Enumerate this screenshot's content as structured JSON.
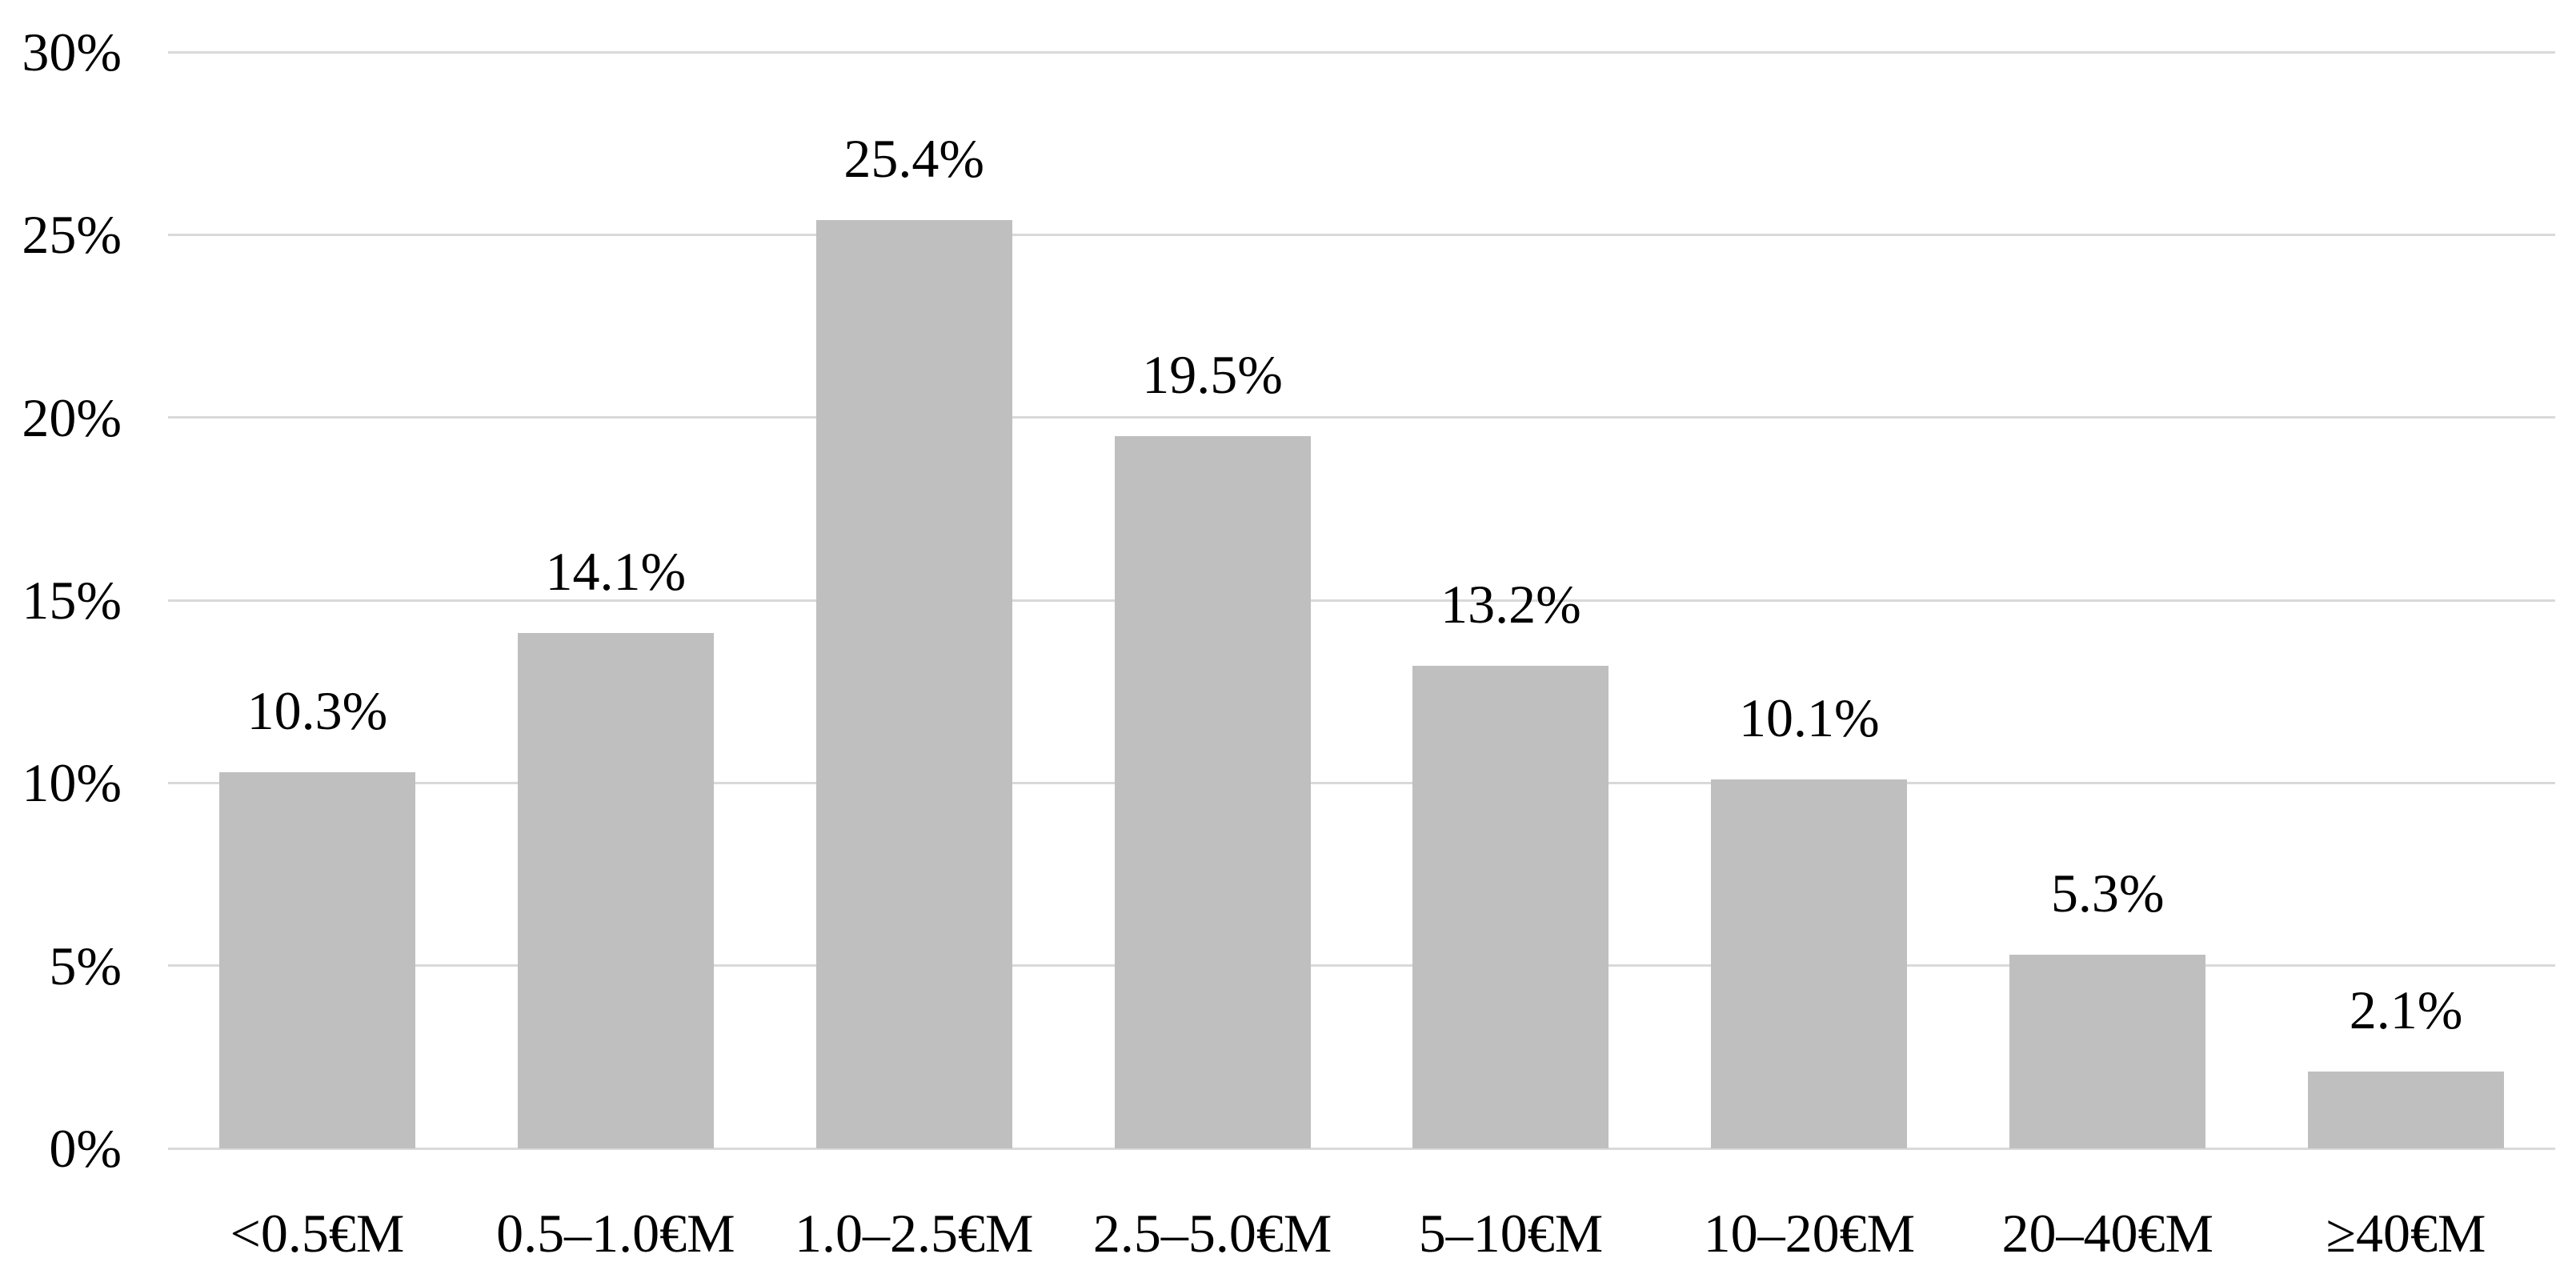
{
  "chart_data": {
    "type": "bar",
    "title": "",
    "xlabel": "",
    "ylabel": "",
    "categories": [
      "<0.5€M",
      "0.5–1.0€M",
      "1.0–2.5€M",
      "2.5–5.0€M",
      "5–10€M",
      "10–20€M",
      "20–40€M",
      "≥40€M"
    ],
    "values": [
      10.3,
      14.1,
      25.4,
      19.5,
      13.2,
      10.1,
      5.3,
      2.1
    ],
    "data_labels": [
      "10.3%",
      "14.1%",
      "25.4%",
      "19.5%",
      "13.2%",
      "10.1%",
      "5.3%",
      "2.1%"
    ],
    "y_ticks": [
      "30%",
      "25%",
      "20%",
      "15%",
      "10%",
      "5%",
      "0%"
    ],
    "y_tick_values": [
      30,
      25,
      20,
      15,
      10,
      5,
      0
    ],
    "ylim": [
      0,
      30
    ],
    "grid": true,
    "legend": "none",
    "colors": {
      "bar_fill": "#bfbfbf",
      "gridline": "#d9d9d9",
      "text": "#000000",
      "background": "#ffffff"
    }
  }
}
